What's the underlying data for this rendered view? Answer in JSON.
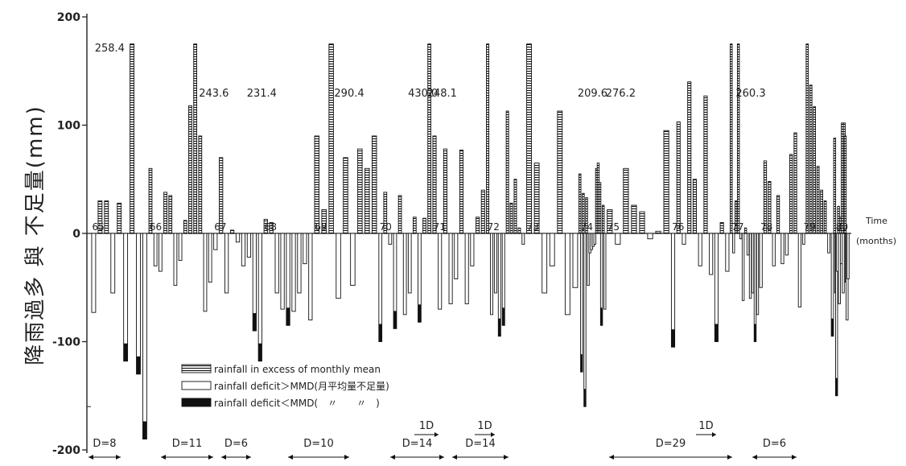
{
  "chart_data": {
    "type": "bar",
    "ylabel": "降雨過多 與 不足量(mm)",
    "x_axis_label": "Time",
    "x_axis_unit": "(months)",
    "ylim": [
      -200,
      200
    ],
    "y_ticks": [
      {
        "value": 200,
        "label": "200"
      },
      {
        "value": 100,
        "label": "100"
      },
      {
        "value": 0,
        "label": "0"
      },
      {
        "value": -100,
        "label": "-100"
      },
      {
        "value": -200,
        "label": "-200"
      }
    ],
    "bar_kinds": {
      "E": "rainfall in excess of monthly mean",
      "D": "rainfall deficit > MMD",
      "S": "rainfall deficit < MMD"
    },
    "legend": [
      {
        "kind": "E",
        "label": "rainfall in excess of monthly mean"
      },
      {
        "kind": "D",
        "label": "rainfall deficit＞MMD(月平均量不足量)"
      },
      {
        "kind": "S",
        "label": "rainfall deficit＜MMD(　〃　　〃　)"
      }
    ],
    "series": [
      {
        "year": "65",
        "values": [
          -73,
          30,
          30,
          -55,
          28,
          -118,
          200,
          -130,
          -190
        ]
      },
      {
        "year": "66",
        "values": [
          60,
          -30,
          -35,
          38,
          35,
          -48,
          -25,
          12,
          118,
          200,
          90,
          -72,
          -45
        ]
      },
      {
        "year": "67",
        "values": [
          -15,
          70,
          -55,
          3,
          -8,
          -30,
          -22,
          -90,
          -118
        ]
      },
      {
        "year": "68",
        "values": [
          13,
          10,
          -55,
          -70,
          -85,
          -72,
          -55,
          -28,
          -80
        ]
      },
      {
        "year": "69",
        "values": [
          90,
          22,
          200,
          -60,
          70,
          -48,
          78,
          60,
          90
        ]
      },
      {
        "year": "70",
        "values": [
          -100,
          38,
          -10,
          -88,
          35,
          -75,
          -55,
          15,
          -82,
          14,
          200
        ]
      },
      {
        "year": "71",
        "values": [
          90,
          -70,
          78,
          -65,
          -42,
          77,
          -65,
          -30,
          15,
          40
        ]
      },
      {
        "year": "72",
        "values": [
          200,
          -75,
          -55,
          -95,
          -85,
          113,
          28,
          50,
          5,
          -10
        ]
      },
      {
        "year": "73",
        "values": [
          200,
          65,
          -55,
          -30,
          113,
          -75,
          -50
        ]
      },
      {
        "year": "74",
        "values": [
          55,
          -128,
          37,
          -160,
          33,
          -48,
          -18,
          -15,
          -12,
          -10,
          60,
          65,
          47,
          -85,
          26,
          -70
        ]
      },
      {
        "year": "75",
        "values": [
          22,
          -10,
          60,
          26,
          20,
          -5,
          2,
          95
        ]
      },
      {
        "year": "76",
        "values": [
          -105,
          103,
          -10,
          140,
          50,
          -30,
          127,
          -38,
          -100,
          10,
          -35
        ]
      },
      {
        "year": "77",
        "values": [
          200,
          -18,
          30,
          180,
          -5,
          -62,
          5,
          -20,
          -60,
          -55,
          -100,
          -75
        ]
      },
      {
        "year": "78",
        "values": [
          -50,
          67,
          48,
          -30,
          35,
          -28,
          -20,
          73,
          93,
          -68
        ]
      },
      {
        "year": "79",
        "values": [
          -10,
          200,
          137,
          117,
          62,
          40,
          30,
          -18,
          -95
        ]
      },
      {
        "year": "80",
        "values": [
          88,
          -55,
          -150,
          -35,
          25,
          -65,
          15,
          -28,
          102,
          -55,
          102,
          90,
          -45,
          -80,
          -42
        ]
      }
    ],
    "peak_labels": [
      {
        "value": "258.4"
      },
      {
        "value": "243.6"
      },
      {
        "value": "231.4"
      },
      {
        "value": "290.4"
      },
      {
        "value": "430.0"
      },
      {
        "value": "248.1"
      },
      {
        "value": "209.6"
      },
      {
        "value": "276.2"
      },
      {
        "value": "260.3"
      }
    ],
    "drought_spans": [
      {
        "label": "D=8"
      },
      {
        "label": "D=11"
      },
      {
        "label": "D=6"
      },
      {
        "label": "D=10"
      },
      {
        "label": "D=14"
      },
      {
        "label": "D=14"
      },
      {
        "label": "D=29"
      },
      {
        "label": "D=6"
      }
    ],
    "gap_marks": [
      {
        "label": "1D"
      },
      {
        "label": "1D"
      },
      {
        "label": "1D"
      }
    ]
  }
}
